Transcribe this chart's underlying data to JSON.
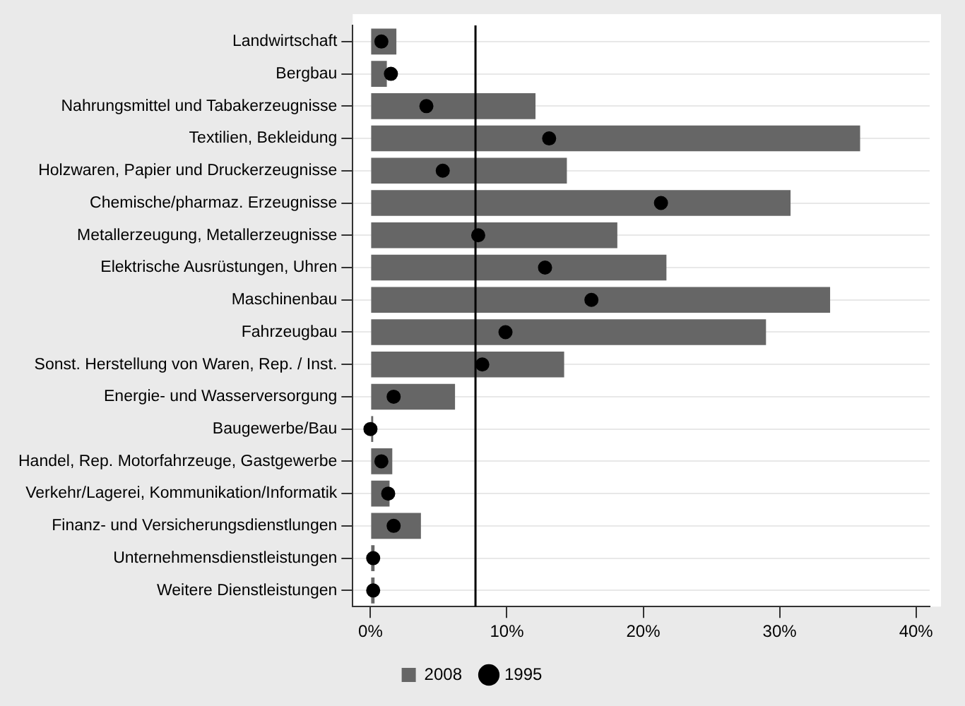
{
  "chart_data": {
    "type": "bar",
    "orientation": "horizontal",
    "categories": [
      "Landwirtschaft",
      "Bergbau",
      "Nahrungsmittel und Tabakerzeugnisse",
      "Textilien, Bekleidung",
      "Holzwaren, Papier und Druckerzeugnisse",
      "Chemische/pharmaz. Erzeugnisse",
      "Metallerzeugung, Metallerzeugnisse",
      "Elektrische Ausrüstungen, Uhren",
      "Maschinenbau",
      "Fahrzeugbau",
      "Sonst. Herstellung von Waren, Rep. / Inst.",
      "Energie- und Wasserversorgung",
      "Baugewerbe/Bau",
      "Handel, Rep. Motorfahrzeuge, Gastgewerbe",
      "Verkehr/Lagerei, Kommunikation/Informatik",
      "Finanz- und Versicherungsdienstlungen",
      "Unternehmensdienstleistungen",
      "Weitere Dienstleistungen"
    ],
    "series": [
      {
        "name": "2008",
        "color": "#666666",
        "values": [
          1.9,
          1.2,
          12.1,
          35.9,
          14.4,
          30.8,
          18.1,
          21.7,
          33.7,
          29.0,
          14.2,
          6.2,
          0.2,
          1.6,
          1.4,
          3.7,
          0.3,
          0.3
        ]
      },
      {
        "name": "1995",
        "type": "scatter",
        "color": "#000000",
        "marker": "circle",
        "values": [
          0.8,
          1.5,
          4.1,
          13.1,
          5.3,
          21.3,
          7.9,
          12.8,
          16.2,
          9.9,
          8.2,
          1.7,
          0,
          0.8,
          1.3,
          1.7,
          0.2,
          0.2
        ]
      }
    ],
    "xlim": [
      -1.3,
      41
    ],
    "xticks": [
      {
        "value": 0,
        "label": "0%"
      },
      {
        "value": 10,
        "label": "10%"
      },
      {
        "value": 20,
        "label": "20%"
      },
      {
        "value": 30,
        "label": "30%"
      },
      {
        "value": 40,
        "label": "40%"
      }
    ],
    "ref_lines": [
      {
        "axis": "x",
        "value": 7.7,
        "color": "#000000"
      }
    ],
    "grid": "y",
    "legend": "bottom"
  }
}
